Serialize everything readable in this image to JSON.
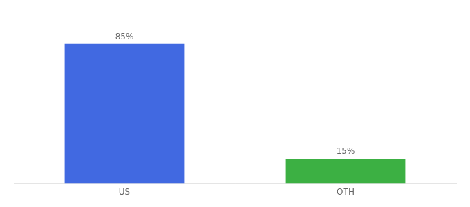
{
  "chart_data": {
    "type": "bar",
    "categories": [
      "US",
      "OTH"
    ],
    "values": [
      85,
      15
    ],
    "value_labels": [
      "85%",
      "15%"
    ],
    "colors": [
      "#4169e1",
      "#3cb043"
    ],
    "ylim": [
      0,
      100
    ],
    "grid": false,
    "data_labels": true,
    "tick_labels": "x"
  }
}
